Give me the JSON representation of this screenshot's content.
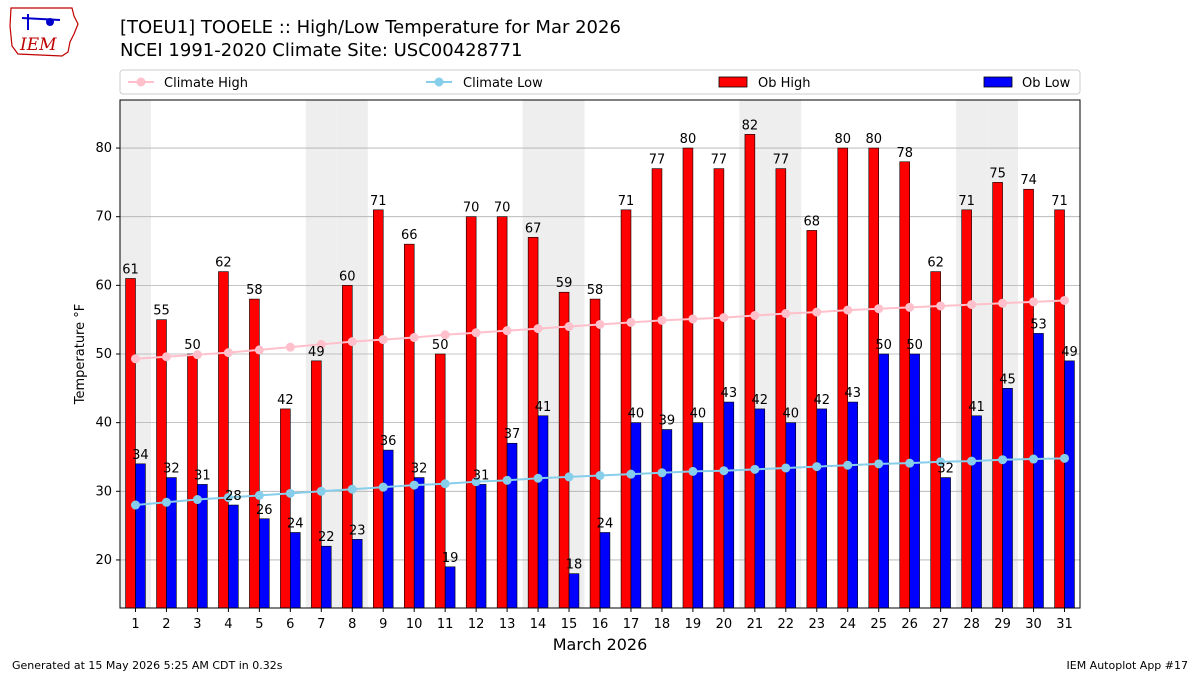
{
  "logo": {
    "text": "IEM"
  },
  "title_line1": "[TOEU1] TOOELE :: High/Low Temperature for Mar 2026",
  "title_line2": "NCEI 1991-2020 Climate Site: USC00428771",
  "footer_left": "Generated at 15 May 2026 5:25 AM CDT in 0.32s",
  "footer_right": "IEM Autoplot App #17",
  "colors": {
    "climate_high": "#ffc0cb",
    "climate_low": "#87ceeb",
    "ob_high": "#ff0000",
    "ob_low": "#0000ff",
    "weekend_shade": "#eeeeee",
    "grid": "#b0b0b0"
  },
  "chart_data": {
    "type": "bar",
    "xlabel": "March 2026",
    "ylabel": "Temperature °F",
    "ylim": [
      13,
      87
    ],
    "yticks": [
      20,
      30,
      40,
      50,
      60,
      70,
      80
    ],
    "grid": true,
    "legend_position": "top",
    "categories": [
      "1",
      "2",
      "3",
      "4",
      "5",
      "6",
      "7",
      "8",
      "9",
      "10",
      "11",
      "12",
      "13",
      "14",
      "15",
      "16",
      "17",
      "18",
      "19",
      "20",
      "21",
      "22",
      "23",
      "24",
      "25",
      "26",
      "27",
      "28",
      "29",
      "30",
      "31"
    ],
    "shaded_days": [
      1,
      7,
      8,
      14,
      15,
      21,
      22,
      28,
      29
    ],
    "series": [
      {
        "name": "Ob High",
        "kind": "bar",
        "values": [
          61,
          55,
          50,
          62,
          58,
          42,
          49,
          60,
          71,
          66,
          50,
          70,
          70,
          67,
          59,
          58,
          71,
          77,
          80,
          77,
          82,
          77,
          68,
          80,
          80,
          78,
          62,
          71,
          75,
          74,
          71
        ]
      },
      {
        "name": "Ob Low",
        "kind": "bar",
        "values": [
          34,
          32,
          31,
          28,
          26,
          24,
          22,
          23,
          36,
          32,
          19,
          31,
          37,
          41,
          18,
          24,
          40,
          39,
          40,
          43,
          42,
          40,
          42,
          43,
          50,
          50,
          32,
          41,
          45,
          53,
          49
        ]
      },
      {
        "name": "Climate High",
        "kind": "line",
        "values": [
          49.3,
          49.6,
          49.9,
          50.2,
          50.6,
          51.0,
          51.4,
          51.8,
          52.1,
          52.4,
          52.8,
          53.1,
          53.4,
          53.7,
          54.0,
          54.3,
          54.6,
          54.9,
          55.1,
          55.3,
          55.6,
          55.9,
          56.1,
          56.4,
          56.6,
          56.8,
          57.0,
          57.2,
          57.4,
          57.6,
          57.8
        ]
      },
      {
        "name": "Climate Low",
        "kind": "line",
        "values": [
          28.0,
          28.4,
          28.8,
          29.1,
          29.4,
          29.7,
          30.0,
          30.3,
          30.6,
          30.9,
          31.1,
          31.4,
          31.6,
          31.9,
          32.1,
          32.3,
          32.5,
          32.7,
          32.9,
          33.0,
          33.2,
          33.4,
          33.6,
          33.8,
          34.0,
          34.1,
          34.3,
          34.4,
          34.6,
          34.7,
          34.8
        ]
      }
    ]
  }
}
